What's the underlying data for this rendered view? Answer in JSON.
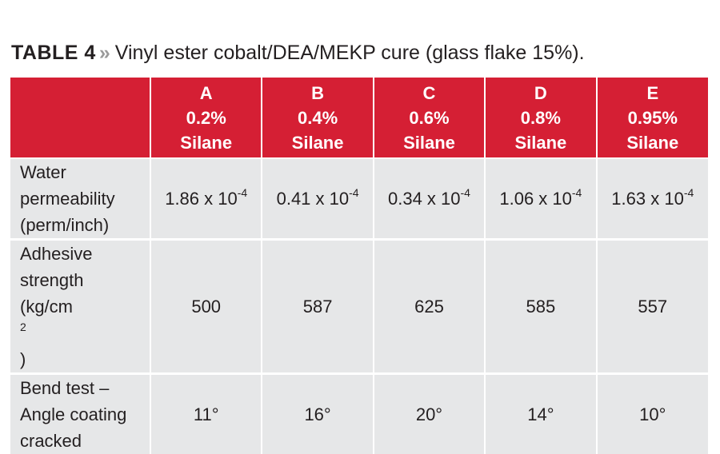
{
  "title": {
    "label": "TABLE 4",
    "separator": "»",
    "caption": "Vinyl ester cobalt/DEA/MEKP cure (glass flake 15%)."
  },
  "table": {
    "corner": "",
    "columns": [
      {
        "letter": "A",
        "percent": "0.2%",
        "name": "Silane"
      },
      {
        "letter": "B",
        "percent": "0.4%",
        "name": "Silane"
      },
      {
        "letter": "C",
        "percent": "0.6%",
        "name": "Silane"
      },
      {
        "letter": "D",
        "percent": "0.8%",
        "name": "Silane"
      },
      {
        "letter": "E",
        "percent": "0.95%",
        "name": "Silane"
      }
    ],
    "rows": [
      {
        "label_lines": [
          "Water",
          "permeability",
          "(perm/inch)"
        ],
        "label_sup": "",
        "values": [
          {
            "base": "1.86 x 10",
            "exp": "-4"
          },
          {
            "base": "0.41 x 10",
            "exp": "-4"
          },
          {
            "base": "0.34 x 10",
            "exp": "-4"
          },
          {
            "base": "1.06 x 10",
            "exp": "-4"
          },
          {
            "base": "1.63 x 10",
            "exp": "-4"
          }
        ]
      },
      {
        "label_lines": [
          "Adhesive",
          "strength",
          "(kg/cm",
          ")"
        ],
        "label_sup": "2",
        "values": [
          {
            "base": "500",
            "exp": ""
          },
          {
            "base": "587",
            "exp": ""
          },
          {
            "base": "625",
            "exp": ""
          },
          {
            "base": "585",
            "exp": ""
          },
          {
            "base": "557",
            "exp": ""
          }
        ]
      },
      {
        "label_lines": [
          "Bend test –",
          "Angle coating",
          "cracked"
        ],
        "label_sup": "",
        "values": [
          {
            "base": "11°",
            "exp": ""
          },
          {
            "base": "16°",
            "exp": ""
          },
          {
            "base": "20°",
            "exp": ""
          },
          {
            "base": "14°",
            "exp": ""
          },
          {
            "base": "10°",
            "exp": ""
          }
        ]
      }
    ]
  }
}
